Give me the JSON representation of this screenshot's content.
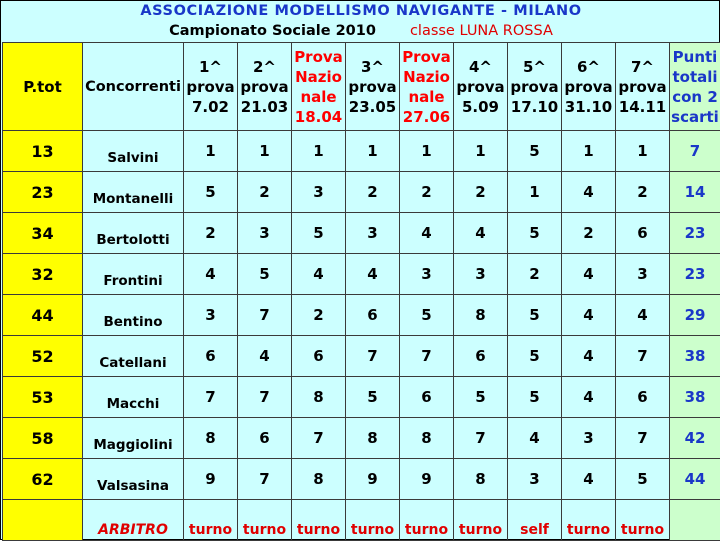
{
  "header": {
    "title": "ASSOCIAZIONE MODELLISMO NAVIGANTE - MILANO",
    "subtitle": "Campionato Sociale 2010",
    "class_label": "classe LUNA ROSSA"
  },
  "columns": {
    "ptot": "P.tot",
    "concorrenti": "Concorrenti",
    "prove": [
      {
        "lines": [
          "1^",
          "prova",
          "7.02"
        ],
        "highlight": false
      },
      {
        "lines": [
          "2^",
          "prova",
          "21.03"
        ],
        "highlight": false
      },
      {
        "lines": [
          "Prova",
          "Nazio",
          "nale",
          "18.04"
        ],
        "highlight": true
      },
      {
        "lines": [
          "3^",
          "prova",
          "23.05"
        ],
        "highlight": false
      },
      {
        "lines": [
          "Prova",
          "Nazio",
          "nale",
          "27.06"
        ],
        "highlight": true
      },
      {
        "lines": [
          "4^",
          "prova",
          "5.09"
        ],
        "highlight": false
      },
      {
        "lines": [
          "5^",
          "prova",
          "17.10"
        ],
        "highlight": false
      },
      {
        "lines": [
          "6^",
          "prova",
          "31.10"
        ],
        "highlight": false
      },
      {
        "lines": [
          "7^",
          "prova",
          "14.11"
        ],
        "highlight": false
      }
    ],
    "punti": [
      "Punti",
      "totali",
      "con 2",
      "scarti"
    ]
  },
  "rows": [
    {
      "ptot": "13",
      "name": "Salvini",
      "scores": [
        "1",
        "1",
        "1",
        "1",
        "1",
        "1",
        "5",
        "1",
        "1"
      ],
      "total": "7"
    },
    {
      "ptot": "23",
      "name": "Montanelli",
      "scores": [
        "5",
        "2",
        "3",
        "2",
        "2",
        "2",
        "1",
        "4",
        "2"
      ],
      "total": "14"
    },
    {
      "ptot": "34",
      "name": "Bertolotti",
      "scores": [
        "2",
        "3",
        "5",
        "3",
        "4",
        "4",
        "5",
        "2",
        "6"
      ],
      "total": "23"
    },
    {
      "ptot": "32",
      "name": "Frontini",
      "scores": [
        "4",
        "5",
        "4",
        "4",
        "3",
        "3",
        "2",
        "4",
        "3"
      ],
      "total": "23"
    },
    {
      "ptot": "44",
      "name": "Bentino",
      "scores": [
        "3",
        "7",
        "2",
        "6",
        "5",
        "8",
        "5",
        "4",
        "4"
      ],
      "total": "29"
    },
    {
      "ptot": "52",
      "name": "Catellani",
      "scores": [
        "6",
        "4",
        "6",
        "7",
        "7",
        "6",
        "5",
        "4",
        "7"
      ],
      "total": "38"
    },
    {
      "ptot": "53",
      "name": "Macchi",
      "scores": [
        "7",
        "7",
        "8",
        "5",
        "6",
        "5",
        "5",
        "4",
        "6"
      ],
      "total": "38"
    },
    {
      "ptot": "58",
      "name": "Maggiolini",
      "scores": [
        "8",
        "6",
        "7",
        "8",
        "8",
        "7",
        "4",
        "3",
        "7"
      ],
      "total": "42"
    },
    {
      "ptot": "62",
      "name": "Valsasina",
      "scores": [
        "9",
        "7",
        "8",
        "9",
        "9",
        "8",
        "3",
        "4",
        "5"
      ],
      "total": "44"
    }
  ],
  "footer": {
    "label": "ARBITRO",
    "turns": [
      "turno",
      "turno",
      "turno",
      "turno",
      "turno",
      "turno",
      "self",
      "turno",
      "turno"
    ]
  },
  "colors": {
    "background": "#ccffff",
    "ptot_column": "#ffff00",
    "total_column": "#ccffcc",
    "title_blue": "#1a37c8",
    "accent_red": "#e00000"
  }
}
